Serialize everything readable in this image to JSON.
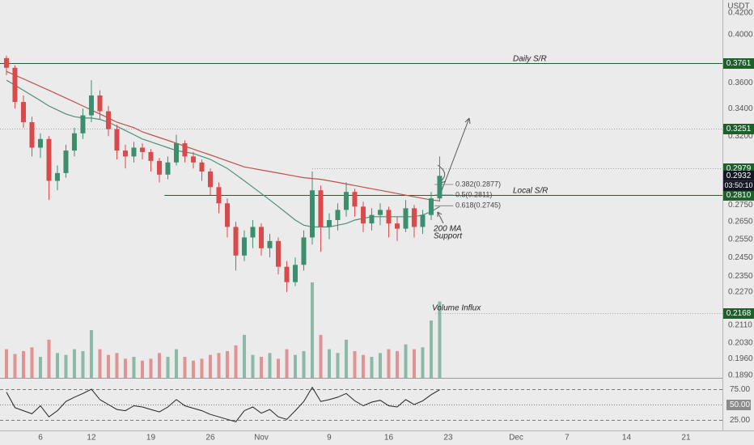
{
  "chart_data": {
    "type": "candlestick",
    "currency": "USDT",
    "log_scale": true,
    "ylim": [
      0.1879,
      0.4319
    ],
    "yticks": [
      {
        "value": 0.42,
        "label": "0.4200"
      },
      {
        "value": 0.4,
        "label": "0.4000"
      },
      {
        "value": 0.36,
        "label": "0.3600"
      },
      {
        "value": 0.34,
        "label": "0.3400"
      },
      {
        "value": 0.32,
        "label": "0.3200"
      },
      {
        "value": 0.275,
        "label": "0.2750"
      },
      {
        "value": 0.265,
        "label": "0.2650"
      },
      {
        "value": 0.255,
        "label": "0.2550"
      },
      {
        "value": 0.245,
        "label": "0.2450"
      },
      {
        "value": 0.235,
        "label": "0.2350"
      },
      {
        "value": 0.227,
        "label": "0.2270"
      },
      {
        "value": 0.211,
        "label": "0.2110"
      },
      {
        "value": 0.203,
        "label": "0.2030"
      },
      {
        "value": 0.196,
        "label": "0.1960"
      },
      {
        "value": 0.189,
        "label": "0.1890"
      }
    ],
    "xlim": [
      1.24,
      86.29
    ],
    "xticks": [
      6,
      12,
      19,
      26,
      {
        "value": 32,
        "label": "Nov"
      },
      {
        "value": 40,
        "label": "9"
      },
      {
        "value": 47,
        "label": "16"
      },
      {
        "value": 54,
        "label": "23"
      },
      {
        "value": 62,
        "label": "Dec"
      },
      {
        "value": 68,
        "label": "7"
      },
      {
        "value": 75,
        "label": "14"
      },
      {
        "value": 82,
        "label": "21"
      }
    ],
    "up_color": "#3c8f6e",
    "down_color": "#d94a4a",
    "x": [
      2,
      3,
      4,
      5,
      6,
      7,
      8,
      9,
      10,
      11,
      12,
      13,
      14,
      15,
      16,
      17,
      18,
      19,
      20,
      21,
      22,
      23,
      24,
      25,
      26,
      27,
      28,
      29,
      30,
      31,
      32,
      33,
      34,
      35,
      36,
      37,
      38,
      39,
      40,
      41,
      42,
      43,
      44,
      45,
      46,
      47,
      48,
      49,
      50,
      51,
      52,
      53
    ],
    "ohlc": [
      [
        0.38,
        0.382,
        0.366,
        0.372
      ],
      [
        0.372,
        0.374,
        0.34,
        0.345
      ],
      [
        0.345,
        0.35,
        0.326,
        0.33
      ],
      [
        0.33,
        0.334,
        0.306,
        0.312
      ],
      [
        0.312,
        0.322,
        0.305,
        0.318
      ],
      [
        0.318,
        0.32,
        0.278,
        0.29
      ],
      [
        0.29,
        0.3,
        0.284,
        0.295
      ],
      [
        0.295,
        0.314,
        0.292,
        0.31
      ],
      [
        0.31,
        0.326,
        0.306,
        0.322
      ],
      [
        0.322,
        0.34,
        0.318,
        0.335
      ],
      [
        0.335,
        0.362,
        0.33,
        0.35
      ],
      [
        0.35,
        0.354,
        0.332,
        0.338
      ],
      [
        0.338,
        0.342,
        0.32,
        0.325
      ],
      [
        0.325,
        0.328,
        0.304,
        0.31
      ],
      [
        0.31,
        0.314,
        0.298,
        0.306
      ],
      [
        0.306,
        0.316,
        0.302,
        0.312
      ],
      [
        0.312,
        0.315,
        0.304,
        0.309
      ],
      [
        0.309,
        0.311,
        0.296,
        0.303
      ],
      [
        0.303,
        0.305,
        0.289,
        0.294
      ],
      [
        0.294,
        0.306,
        0.291,
        0.302
      ],
      [
        0.302,
        0.321,
        0.3,
        0.315
      ],
      [
        0.315,
        0.317,
        0.302,
        0.306
      ],
      [
        0.306,
        0.309,
        0.298,
        0.302
      ],
      [
        0.302,
        0.304,
        0.29,
        0.296
      ],
      [
        0.296,
        0.298,
        0.281,
        0.286
      ],
      [
        0.286,
        0.289,
        0.27,
        0.276
      ],
      [
        0.276,
        0.279,
        0.256,
        0.262
      ],
      [
        0.262,
        0.265,
        0.238,
        0.246
      ],
      [
        0.246,
        0.26,
        0.243,
        0.256
      ],
      [
        0.256,
        0.266,
        0.25,
        0.262
      ],
      [
        0.262,
        0.264,
        0.246,
        0.25
      ],
      [
        0.25,
        0.258,
        0.245,
        0.254
      ],
      [
        0.254,
        0.256,
        0.236,
        0.24
      ],
      [
        0.24,
        0.243,
        0.227,
        0.232
      ],
      [
        0.232,
        0.245,
        0.23,
        0.241
      ],
      [
        0.241,
        0.26,
        0.238,
        0.256
      ],
      [
        0.256,
        0.296,
        0.252,
        0.284
      ],
      [
        0.284,
        0.287,
        0.248,
        0.262
      ],
      [
        0.262,
        0.27,
        0.255,
        0.266
      ],
      [
        0.266,
        0.276,
        0.26,
        0.272
      ],
      [
        0.272,
        0.289,
        0.268,
        0.283
      ],
      [
        0.283,
        0.285,
        0.268,
        0.274
      ],
      [
        0.274,
        0.277,
        0.259,
        0.264
      ],
      [
        0.264,
        0.273,
        0.26,
        0.269
      ],
      [
        0.269,
        0.276,
        0.263,
        0.272
      ],
      [
        0.272,
        0.274,
        0.256,
        0.264
      ],
      [
        0.264,
        0.268,
        0.254,
        0.261
      ],
      [
        0.261,
        0.278,
        0.259,
        0.273
      ],
      [
        0.273,
        0.275,
        0.256,
        0.262
      ],
      [
        0.262,
        0.272,
        0.258,
        0.269
      ],
      [
        0.269,
        0.283,
        0.266,
        0.279
      ],
      [
        0.279,
        0.306,
        0.277,
        0.2932
      ]
    ],
    "volume": [
      30,
      25,
      28,
      32,
      22,
      40,
      26,
      24,
      30,
      28,
      50,
      30,
      24,
      26,
      20,
      22,
      18,
      20,
      26,
      22,
      30,
      22,
      18,
      20,
      24,
      26,
      28,
      34,
      45,
      24,
      22,
      26,
      20,
      30,
      24,
      28,
      100,
      45,
      30,
      26,
      40,
      28,
      24,
      22,
      26,
      30,
      28,
      35,
      30,
      32,
      60,
      80
    ],
    "series": [
      {
        "color": "#c0504d",
        "values": [
          0.369,
          0.366,
          0.363,
          0.36,
          0.357,
          0.354,
          0.351,
          0.348,
          0.345,
          0.342,
          0.339,
          0.336,
          0.333,
          0.33,
          0.328,
          0.326,
          0.323,
          0.321,
          0.319,
          0.317,
          0.315,
          0.313,
          0.311,
          0.309,
          0.307,
          0.305,
          0.303,
          0.301,
          0.299,
          0.298,
          0.297,
          0.296,
          0.295,
          0.294,
          0.293,
          0.292,
          0.2915,
          0.291,
          0.29,
          0.289,
          0.288,
          0.287,
          0.286,
          0.285,
          0.284,
          0.283,
          0.282,
          0.281,
          0.28,
          0.279,
          0.278,
          0.2775
        ]
      },
      {
        "color": "#4f8f7a",
        "values": [
          0.362,
          0.358,
          0.354,
          0.35,
          0.346,
          0.342,
          0.339,
          0.336,
          0.334,
          0.333,
          0.333,
          0.332,
          0.33,
          0.327,
          0.324,
          0.321,
          0.318,
          0.316,
          0.314,
          0.312,
          0.31,
          0.309,
          0.308,
          0.306,
          0.304,
          0.301,
          0.298,
          0.294,
          0.29,
          0.286,
          0.282,
          0.278,
          0.274,
          0.27,
          0.266,
          0.263,
          0.262,
          0.262,
          0.262,
          0.263,
          0.264,
          0.266,
          0.267,
          0.268,
          0.268,
          0.268,
          0.268,
          0.268,
          0.268,
          0.269,
          0.271,
          0.274
        ]
      }
    ],
    "levels": [
      {
        "value": 0.3761,
        "color": "#1f5f2b",
        "style": "solid"
      },
      {
        "value": 0.3251,
        "color": "#1f5f2b",
        "style": "dotted"
      },
      {
        "value": 0.2979,
        "color": "#1f5f2b",
        "style": "dotted",
        "start": 38
      },
      {
        "value": 0.281,
        "label": "0.2810",
        "color": "#1f5f2b",
        "style": "solid",
        "start": 20.6
      },
      {
        "value": 0.2168,
        "color": "#1f5f2b",
        "style": "dotted",
        "start": 52.5
      }
    ],
    "last_price": {
      "value": 0.2932,
      "countdown": "03:50:10",
      "color": "#131722"
    },
    "fib": [
      {
        "value": 0.2877,
        "label": "0.382(0.2877)"
      },
      {
        "value": 0.2811,
        "label": "0.5(0.2811)"
      },
      {
        "value": 0.2745,
        "label": "0.618(0.2745)"
      }
    ],
    "annotations": [
      "Daily S/R",
      "Local S/R",
      "200 MA",
      "Support",
      "Volume Influx"
    ],
    "rsi": {
      "color": "#222222",
      "ylim": [
        8,
        92
      ],
      "yticks": [
        {
          "value": 75,
          "label": "75.00"
        },
        {
          "value": 50,
          "label": "50.00"
        },
        {
          "value": 25,
          "label": "25.00"
        }
      ],
      "values": [
        70,
        45,
        40,
        35,
        48,
        30,
        40,
        55,
        62,
        68,
        75,
        58,
        50,
        42,
        40,
        48,
        46,
        42,
        38,
        46,
        58,
        48,
        44,
        40,
        34,
        30,
        26,
        22,
        40,
        46,
        36,
        42,
        30,
        26,
        40,
        55,
        78,
        55,
        58,
        62,
        68,
        56,
        48,
        54,
        57,
        48,
        46,
        58,
        50,
        56,
        66,
        74
      ]
    }
  }
}
